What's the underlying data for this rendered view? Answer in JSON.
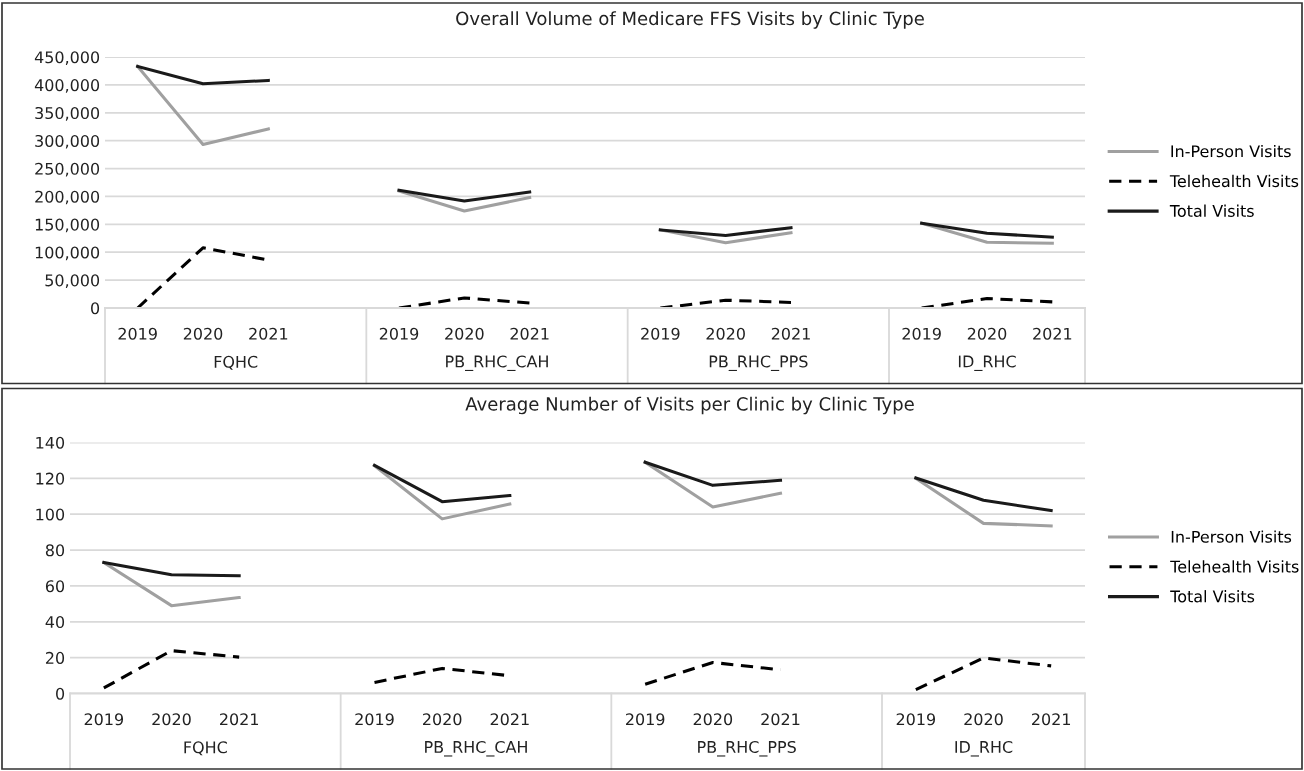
{
  "chart_data": [
    {
      "type": "line",
      "title": "Overall Volume of Medicare FFS Visits by Clinic Type",
      "categories": [
        "2019",
        "2020",
        "2021",
        null,
        "2019",
        "2020",
        "2021",
        null,
        "2019",
        "2020",
        "2021",
        null,
        "2019",
        "2020",
        "2021"
      ],
      "annotations": [
        "FQHC",
        "PB_RHC_CAH",
        "PB_RHC_PPS",
        "ID_RHC"
      ],
      "series": [
        {
          "name": "In-Person Visits",
          "color": "#a0a0a0",
          "line_style": "solid",
          "values": [
            433000,
            293000,
            321000,
            null,
            210000,
            174000,
            198000,
            null,
            140000,
            117000,
            135000,
            null,
            152000,
            118000,
            116000
          ]
        },
        {
          "name": "Telehealth Visits",
          "color": "#000000",
          "line_style": "dashed",
          "values": [
            0,
            108000,
            86000,
            null,
            0,
            18000,
            9000,
            null,
            0,
            14000,
            10000,
            null,
            0,
            17000,
            11000
          ]
        },
        {
          "name": "Total Visits",
          "color": "#1a1a1a",
          "line_style": "solid",
          "values": [
            433000,
            402000,
            408000,
            null,
            211000,
            192000,
            208000,
            null,
            140000,
            130000,
            144000,
            null,
            152000,
            134000,
            127000
          ]
        }
      ],
      "ylim": [
        0,
        450000
      ],
      "yticks": [
        {
          "value": 0,
          "label": "0"
        },
        {
          "value": 50000,
          "label": "50,000"
        },
        {
          "value": 100000,
          "label": "100,000"
        },
        {
          "value": 150000,
          "label": "150,000"
        },
        {
          "value": 200000,
          "label": "200,000"
        },
        {
          "value": 250000,
          "label": "250,000"
        },
        {
          "value": 300000,
          "label": "300,000"
        },
        {
          "value": 350000,
          "label": "350,000"
        },
        {
          "value": 400000,
          "label": "400,000"
        },
        {
          "value": 450000,
          "label": "450,000"
        }
      ],
      "grid": "y",
      "legend": "right"
    },
    {
      "type": "line",
      "title": "Average Number of Visits per Clinic by Clinic Type",
      "categories": [
        "2019",
        "2020",
        "2021",
        null,
        "2019",
        "2020",
        "2021",
        null,
        "2019",
        "2020",
        "2021",
        null,
        "2019",
        "2020",
        "2021"
      ],
      "annotations": [
        "FQHC",
        "PB_RHC_CAH",
        "PB_RHC_PPS",
        "ID_RHC"
      ],
      "series": [
        {
          "name": "In-Person Visits",
          "color": "#a0a0a0",
          "line_style": "solid",
          "values": [
            73,
            49,
            53.5,
            null,
            127,
            97.4,
            105.7,
            null,
            129,
            104,
            111.7,
            null,
            120,
            94.9,
            93.5
          ]
        },
        {
          "name": "Telehealth Visits",
          "color": "#000000",
          "line_style": "dashed",
          "values": [
            3.1,
            23.9,
            20.3,
            null,
            6.2,
            14,
            9.9,
            null,
            5.2,
            17.3,
            13.2,
            null,
            2.2,
            19.8,
            15.4
          ]
        },
        {
          "name": "Total Visits",
          "color": "#1a1a1a",
          "line_style": "solid",
          "values": [
            73,
            66.2,
            65.7,
            null,
            127.3,
            107,
            110.4,
            null,
            129,
            116.1,
            118.9,
            null,
            120.2,
            107.8,
            102
          ]
        }
      ],
      "ylim": [
        0,
        140
      ],
      "yticks": [
        0,
        20,
        40,
        60,
        80,
        100,
        120,
        140
      ],
      "grid": "y",
      "legend": "right"
    }
  ]
}
